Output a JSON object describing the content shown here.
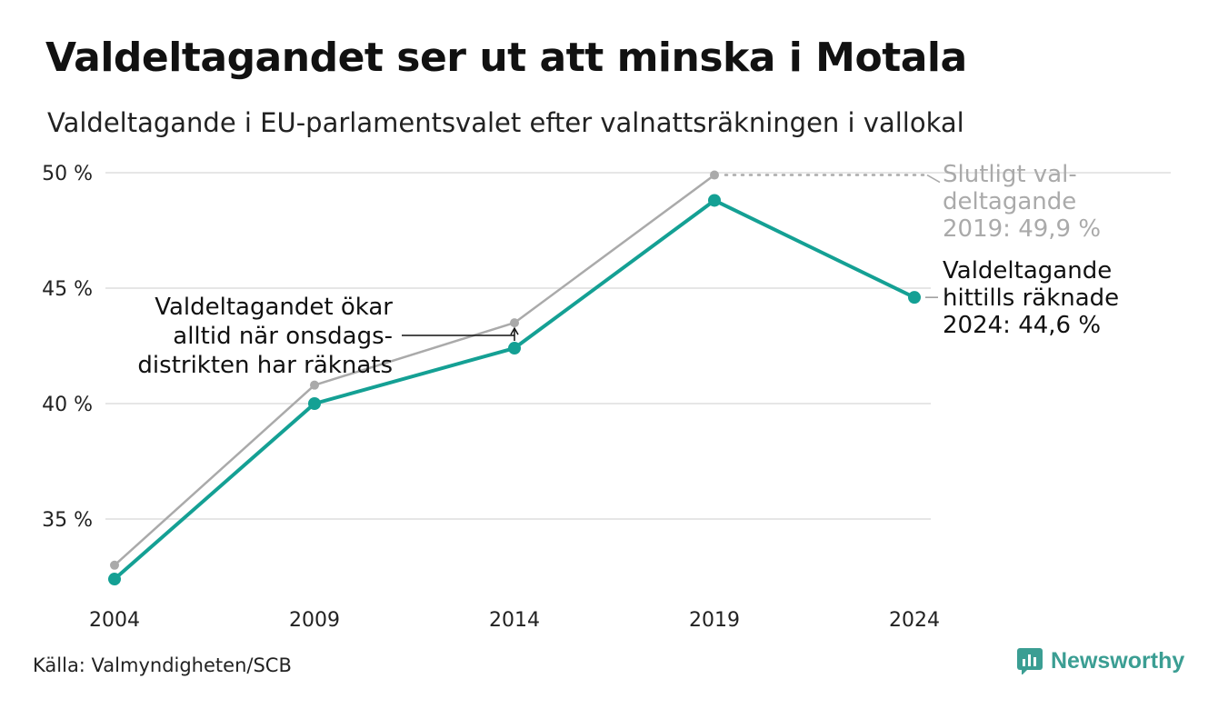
{
  "title": "Valdeltagandet ser ut att minska i Motala",
  "subtitle": "Valdeltagande i EU-parlamentsvalet efter valnattsräkningen i vallokal",
  "source": "Källa: Valmyndigheten/SCB",
  "brand": "Newsworthy",
  "colors": {
    "final": "#aaaaaa",
    "counted": "#14a094",
    "grid": "#e6e6e6",
    "brand": "#3b9e93"
  },
  "chart_data": {
    "type": "line",
    "x": [
      "2004",
      "2009",
      "2014",
      "2019",
      "2024"
    ],
    "ylim": [
      32,
      50
    ],
    "yticks": [
      35,
      40,
      45,
      50
    ],
    "ytick_labels": [
      "35 %",
      "40 %",
      "45 %",
      "50 %"
    ],
    "grid": true,
    "series": [
      {
        "key": "final",
        "values": [
          33.0,
          40.8,
          43.5,
          49.9,
          null
        ]
      },
      {
        "key": "counted",
        "values": [
          32.4,
          40.0,
          42.4,
          48.8,
          44.6
        ]
      }
    ],
    "annotations": {
      "final_label": [
        "Slutligt val-",
        "deltagande",
        "2019: 49,9 %"
      ],
      "counted_label": [
        "Valdeltagande",
        "hittills räknade",
        "2024: 44,6 %"
      ],
      "note": [
        "Valdeltagandet ökar",
        "alltid när onsdags-",
        "distrikten har räknats"
      ]
    }
  }
}
